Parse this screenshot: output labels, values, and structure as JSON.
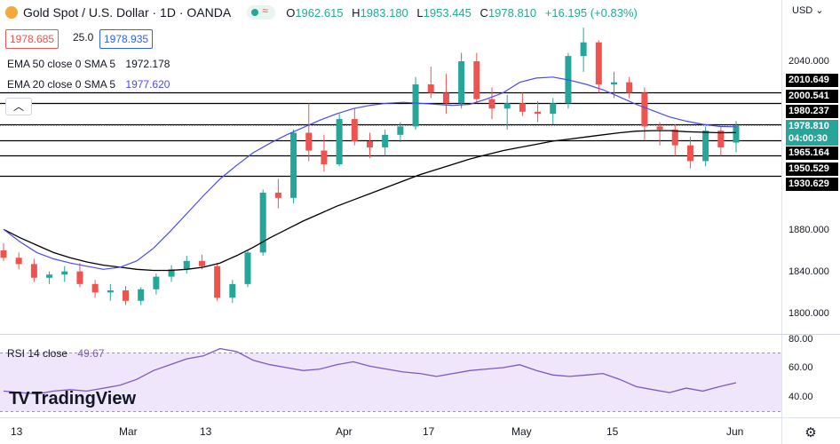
{
  "header": {
    "symbol_title": "Gold Spot / U.S. Dollar · 1D · OANDA",
    "open_label": "O",
    "open": "1962.615",
    "high_label": "H",
    "high": "1983.180",
    "low_label": "L",
    "low": "1953.445",
    "close_label": "C",
    "close": "1978.810",
    "change": "+16.195 (+0.83%)"
  },
  "quote": {
    "bid": "1978.685",
    "spread": "25.0",
    "ask": "1978.935"
  },
  "indicators": {
    "ema50_label": "EMA 50 close 0 SMA 5",
    "ema50_value": "1972.178",
    "ema20_label": "EMA 20 close 0 SMA 5",
    "ema20_value": "1977.620",
    "rsi_label": "RSI 14 close",
    "rsi_value": "49.67"
  },
  "currency": "USD",
  "brand": "TradingView",
  "current_price": {
    "value": "1978.810",
    "countdown": "04:00:30"
  },
  "levels": [
    "2010.649",
    "2000.541",
    "1980.237",
    "1965.164",
    "1950.529",
    "1930.629"
  ],
  "y_ticks": [
    "2040.000",
    "1880.000",
    "1840.000",
    "1800.000"
  ],
  "rsi_ticks": [
    "80.00",
    "60.00",
    "40.00"
  ],
  "x_ticks": [
    "13",
    "Mar",
    "13",
    "Apr",
    "17",
    "May",
    "15",
    "Jun"
  ],
  "colors": {
    "up": "#26a69a",
    "down": "#ef5350",
    "ema20": "#4a4af4",
    "ema50": "#000000",
    "rsi": "#7e57c2",
    "rsi_band": "#f0e6fc"
  },
  "chart_data": {
    "type": "candlestick",
    "title": "Gold Spot / U.S. Dollar · 1D · OANDA",
    "ylim": [
      1790,
      2075
    ],
    "horizontal_levels": [
      2010.649,
      2000.541,
      1980.237,
      1965.164,
      1950.529,
      1930.629
    ],
    "series": [
      {
        "name": "EMA 50 close 0 SMA 5",
        "values": [
          1880,
          1872,
          1865,
          1858,
          1853,
          1849,
          1846,
          1844,
          1842,
          1841,
          1841,
          1842,
          1844,
          1848,
          1855,
          1863,
          1872,
          1880,
          1888,
          1895,
          1902,
          1908,
          1914,
          1920,
          1926,
          1932,
          1937,
          1942,
          1947,
          1951,
          1955,
          1958,
          1961,
          1964,
          1966,
          1968,
          1970,
          1972,
          1973.5,
          1974,
          1974,
          1973,
          1972.5,
          1972,
          1972.178
        ]
      },
      {
        "name": "EMA 20 close 0 SMA 5",
        "values": [
          1880,
          1868,
          1858,
          1852,
          1848,
          1845,
          1842,
          1844,
          1850,
          1862,
          1878,
          1895,
          1912,
          1928,
          1941,
          1953,
          1962,
          1970,
          1977,
          1984,
          1990,
          1995,
          1998,
          2000,
          2001,
          2000,
          1999,
          1998,
          1999,
          2004,
          2010,
          2020,
          2024,
          2025,
          2022,
          2018,
          2013,
          2006,
          1999,
          1993,
          1987,
          1983,
          1980,
          1978,
          1977.62
        ]
      },
      {
        "name": "RSI 14 close",
        "values": [
          44,
          43,
          42,
          44,
          45,
          44,
          46,
          48,
          52,
          58,
          62,
          66,
          68,
          73,
          71,
          65,
          62,
          60,
          58,
          59,
          62,
          64,
          61,
          59,
          57,
          56,
          54,
          56,
          58,
          59,
          60,
          62,
          58,
          55,
          54,
          55,
          56,
          52,
          47,
          45,
          43,
          46,
          44,
          47,
          49.67
        ]
      }
    ],
    "rsi_bands": [
      70,
      30
    ],
    "rsi_ylim": [
      20,
      90
    ],
    "candles": [
      {
        "o": 1860,
        "h": 1867,
        "l": 1850,
        "c": 1853
      },
      {
        "o": 1853,
        "h": 1858,
        "l": 1842,
        "c": 1847
      },
      {
        "o": 1847,
        "h": 1852,
        "l": 1830,
        "c": 1834
      },
      {
        "o": 1834,
        "h": 1840,
        "l": 1828,
        "c": 1837
      },
      {
        "o": 1837,
        "h": 1845,
        "l": 1830,
        "c": 1840
      },
      {
        "o": 1840,
        "h": 1848,
        "l": 1825,
        "c": 1828
      },
      {
        "o": 1828,
        "h": 1832,
        "l": 1815,
        "c": 1820
      },
      {
        "o": 1820,
        "h": 1828,
        "l": 1812,
        "c": 1822
      },
      {
        "o": 1822,
        "h": 1826,
        "l": 1808,
        "c": 1812
      },
      {
        "o": 1812,
        "h": 1825,
        "l": 1808,
        "c": 1823
      },
      {
        "o": 1823,
        "h": 1838,
        "l": 1818,
        "c": 1835
      },
      {
        "o": 1835,
        "h": 1846,
        "l": 1830,
        "c": 1842
      },
      {
        "o": 1842,
        "h": 1855,
        "l": 1838,
        "c": 1850
      },
      {
        "o": 1850,
        "h": 1856,
        "l": 1842,
        "c": 1845
      },
      {
        "o": 1845,
        "h": 1848,
        "l": 1812,
        "c": 1815
      },
      {
        "o": 1815,
        "h": 1832,
        "l": 1810,
        "c": 1828
      },
      {
        "o": 1828,
        "h": 1860,
        "l": 1825,
        "c": 1858
      },
      {
        "o": 1858,
        "h": 1918,
        "l": 1855,
        "c": 1915
      },
      {
        "o": 1915,
        "h": 1928,
        "l": 1900,
        "c": 1910
      },
      {
        "o": 1910,
        "h": 1975,
        "l": 1905,
        "c": 1972
      },
      {
        "o": 1972,
        "h": 2000,
        "l": 1945,
        "c": 1955
      },
      {
        "o": 1955,
        "h": 1970,
        "l": 1935,
        "c": 1942
      },
      {
        "o": 1942,
        "h": 1990,
        "l": 1940,
        "c": 1985
      },
      {
        "o": 1985,
        "h": 1995,
        "l": 1960,
        "c": 1964
      },
      {
        "o": 1964,
        "h": 1972,
        "l": 1948,
        "c": 1958
      },
      {
        "o": 1958,
        "h": 1975,
        "l": 1950,
        "c": 1970
      },
      {
        "o": 1970,
        "h": 1982,
        "l": 1963,
        "c": 1978
      },
      {
        "o": 1978,
        "h": 2025,
        "l": 1975,
        "c": 2018
      },
      {
        "o": 2018,
        "h": 2035,
        "l": 2005,
        "c": 2010
      },
      {
        "o": 2010,
        "h": 2028,
        "l": 1990,
        "c": 2000
      },
      {
        "o": 2000,
        "h": 2048,
        "l": 1995,
        "c": 2040
      },
      {
        "o": 2040,
        "h": 2048,
        "l": 2000,
        "c": 2004
      },
      {
        "o": 2004,
        "h": 2015,
        "l": 1985,
        "c": 1995
      },
      {
        "o": 1995,
        "h": 2008,
        "l": 1975,
        "c": 2000
      },
      {
        "o": 2000,
        "h": 2010,
        "l": 1988,
        "c": 1992
      },
      {
        "o": 1992,
        "h": 2002,
        "l": 1982,
        "c": 1990
      },
      {
        "o": 1990,
        "h": 2005,
        "l": 1980,
        "c": 2000
      },
      {
        "o": 2000,
        "h": 2048,
        "l": 1995,
        "c": 2045
      },
      {
        "o": 2045,
        "h": 2072,
        "l": 2030,
        "c": 2058
      },
      {
        "o": 2058,
        "h": 2060,
        "l": 2010,
        "c": 2018
      },
      {
        "o": 2018,
        "h": 2030,
        "l": 2005,
        "c": 2020
      },
      {
        "o": 2020,
        "h": 2025,
        "l": 2005,
        "c": 2010
      },
      {
        "o": 2010,
        "h": 2015,
        "l": 1965,
        "c": 1978
      },
      {
        "o": 1978,
        "h": 1982,
        "l": 1960,
        "c": 1975
      },
      {
        "o": 1975,
        "h": 1980,
        "l": 1950,
        "c": 1960
      },
      {
        "o": 1960,
        "h": 1968,
        "l": 1938,
        "c": 1945
      },
      {
        "o": 1945,
        "h": 1978,
        "l": 1940,
        "c": 1974
      },
      {
        "o": 1974,
        "h": 1978,
        "l": 1950,
        "c": 1958
      },
      {
        "o": 1962.615,
        "h": 1983.18,
        "l": 1953.445,
        "c": 1978.81
      }
    ]
  }
}
